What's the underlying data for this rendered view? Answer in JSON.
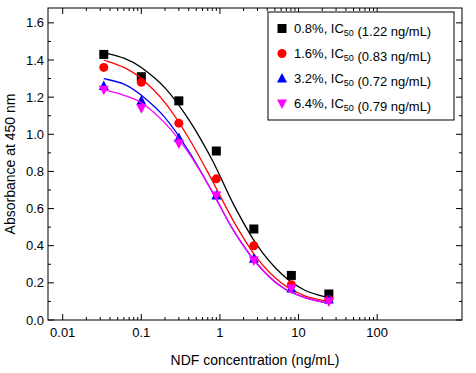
{
  "chart_data": {
    "type": "scatter",
    "x_label": "NDF concentration (ng/mL)",
    "y_label": "Absorbance at 450 nm",
    "log": "x",
    "legend": "top-right",
    "xlim": [
      0.0065,
      1200
    ],
    "ylim": [
      0,
      1.68
    ],
    "xticks": [
      0.01,
      0.1,
      1,
      10,
      100
    ],
    "yticks": [
      {
        "value": 0,
        "label": "0.0"
      },
      0.2,
      0.4,
      0.6,
      0.8,
      {
        "value": 1,
        "label": "1.0"
      },
      1.2,
      1.4,
      1.6
    ],
    "x": [
      0.0333,
      0.1,
      0.3,
      0.9,
      2.7,
      8.1,
      24.3
    ],
    "fit_x": [
      0.0333,
      0.06,
      0.1,
      0.2,
      0.4,
      0.8,
      1.5,
      3,
      6,
      12,
      24.3
    ],
    "series": [
      {
        "name": "0.8%, IC50 (1.22 ng/mL)",
        "color": "#000000",
        "marker": "square",
        "values": [
          1.43,
          1.31,
          1.18,
          0.91,
          0.49,
          0.24,
          0.14
        ],
        "fit_values": [
          1.44,
          1.41,
          1.36,
          1.25,
          1.08,
          0.86,
          0.62,
          0.4,
          0.25,
          0.16,
          0.12
        ]
      },
      {
        "name": "1.6%, IC50 (0.83 ng/mL)",
        "color": "#ff0000",
        "marker": "circle",
        "values": [
          1.36,
          1.28,
          1.06,
          0.76,
          0.4,
          0.19,
          0.11
        ],
        "fit_values": [
          1.4,
          1.36,
          1.3,
          1.17,
          0.98,
          0.75,
          0.53,
          0.33,
          0.2,
          0.13,
          0.1
        ]
      },
      {
        "name": "3.2%, IC50 (0.72 ng/mL)",
        "color": "#0000ff",
        "marker": "triangle-up",
        "values": [
          1.26,
          1.18,
          0.98,
          0.67,
          0.33,
          0.17,
          0.11
        ],
        "fit_values": [
          1.3,
          1.27,
          1.21,
          1.09,
          0.91,
          0.69,
          0.48,
          0.3,
          0.18,
          0.12,
          0.09
        ]
      },
      {
        "name": "6.4%, IC50 (0.79 ng/mL)",
        "color": "#ff00ff",
        "marker": "triangle-down",
        "values": [
          1.24,
          1.14,
          0.95,
          0.67,
          0.32,
          0.17,
          0.1
        ],
        "fit_values": [
          1.24,
          1.21,
          1.17,
          1.06,
          0.9,
          0.69,
          0.48,
          0.3,
          0.18,
          0.12,
          0.09
        ]
      }
    ]
  }
}
